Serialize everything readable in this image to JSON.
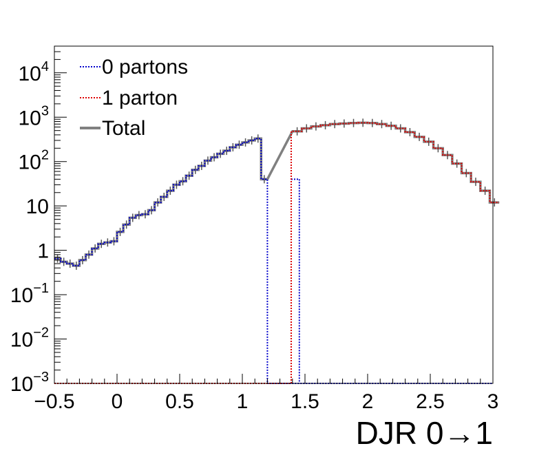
{
  "chart_data": {
    "type": "line",
    "title": "",
    "xlabel": "DJR 0→1",
    "ylabel": "",
    "xlim": [
      -0.5,
      3.0
    ],
    "ylim": [
      0.001,
      40000
    ],
    "yscale": "log",
    "grid": false,
    "legend_position": "top-left",
    "x_ticks": [
      "−0.5",
      "0",
      "0.5",
      "1",
      "1.5",
      "2",
      "2.5",
      "3"
    ],
    "y_ticks": [
      {
        "base": "10",
        "exp": "4"
      },
      {
        "base": "10",
        "exp": "3"
      },
      {
        "base": "10",
        "exp": "2"
      },
      {
        "base": "10",
        "exp": ""
      },
      {
        "base": "1",
        "exp": ""
      },
      {
        "base": "10",
        "exp": "−1"
      },
      {
        "base": "10",
        "exp": "−2"
      },
      {
        "base": "10",
        "exp": "−3"
      }
    ],
    "bin_edges": [
      -0.5,
      -0.45,
      -0.4,
      -0.35,
      -0.3,
      -0.25,
      -0.2,
      -0.15,
      -0.1,
      -0.05,
      0,
      0.05,
      0.1,
      0.15,
      0.2,
      0.25,
      0.3,
      0.35,
      0.4,
      0.45,
      0.5,
      0.55,
      0.6,
      0.65,
      0.7,
      0.75,
      0.8,
      0.85,
      0.9,
      0.95,
      1,
      1.05,
      1.1,
      1.15,
      1.2,
      1.25,
      1.3,
      1.35,
      1.4,
      1.45,
      1.5,
      1.55,
      1.6,
      1.65,
      1.7,
      1.75,
      1.8,
      1.85,
      1.9,
      1.95,
      2,
      2.05,
      2.1,
      2.15,
      2.2,
      2.25,
      2.3,
      2.35,
      2.4,
      2.45,
      2.5,
      2.55,
      2.6,
      2.65,
      2.7,
      2.75,
      2.8,
      2.85,
      2.9,
      2.95,
      3
    ],
    "series": [
      {
        "name": "0 partons",
        "color": "#0000cc",
        "style": "dotted",
        "values": [
          0.65,
          0.55,
          0.5,
          0.45,
          0.6,
          0.8,
          1.1,
          1.4,
          1.5,
          1.6,
          2.6,
          3.8,
          5.4,
          6.2,
          6.5,
          8.0,
          12,
          16,
          22,
          30,
          36,
          48,
          65,
          80,
          105,
          125,
          150,
          175,
          210,
          240,
          270,
          300,
          330,
          40,
          0.001,
          0.001,
          0.001,
          0.001,
          0.001,
          0.001,
          0.001,
          0.001,
          0.001,
          0.001,
          0.001,
          0.001,
          0.001,
          0.001,
          0.001,
          0.001,
          0.001,
          0.001,
          0.001,
          0.001,
          0.001,
          0.001,
          0.001,
          0.001,
          0.001,
          0.001,
          0.001,
          0.001,
          0.001,
          0.001,
          0.001,
          0.001,
          0.001,
          0.001,
          0.001,
          0.001
        ],
        "start_x": -0.5,
        "bin_width": 0.05,
        "first_bin_edges": [
          -0.5,
          -0.45,
          -0.4,
          -0.35,
          -0.3,
          -0.25,
          -0.2,
          -0.15,
          -0.1,
          -0.05,
          0,
          0.05,
          0.1,
          0.15,
          0.2,
          0.25,
          0.3,
          0.35,
          0.4,
          0.45,
          0.5,
          0.55,
          0.6,
          0.65,
          0.7,
          0.75,
          0.8,
          0.85,
          0.9,
          0.95,
          1,
          1.05,
          1.1,
          1.15,
          1.2,
          1.25,
          1.3,
          1.35,
          1.4,
          1.45,
          1.5
        ]
      },
      {
        "name": "1 parton",
        "color": "#dd0000",
        "style": "dotted",
        "values": [
          480,
          560,
          620,
          660,
          700,
          720,
          740,
          750,
          740,
          700,
          640,
          560,
          460,
          360,
          280,
          200,
          140,
          90,
          55,
          35,
          22,
          12
        ],
        "start_x": 1.4,
        "bin_width": 0.075
      },
      {
        "name": "Total",
        "color": "#808080",
        "style": "solid",
        "values": []
      }
    ]
  }
}
